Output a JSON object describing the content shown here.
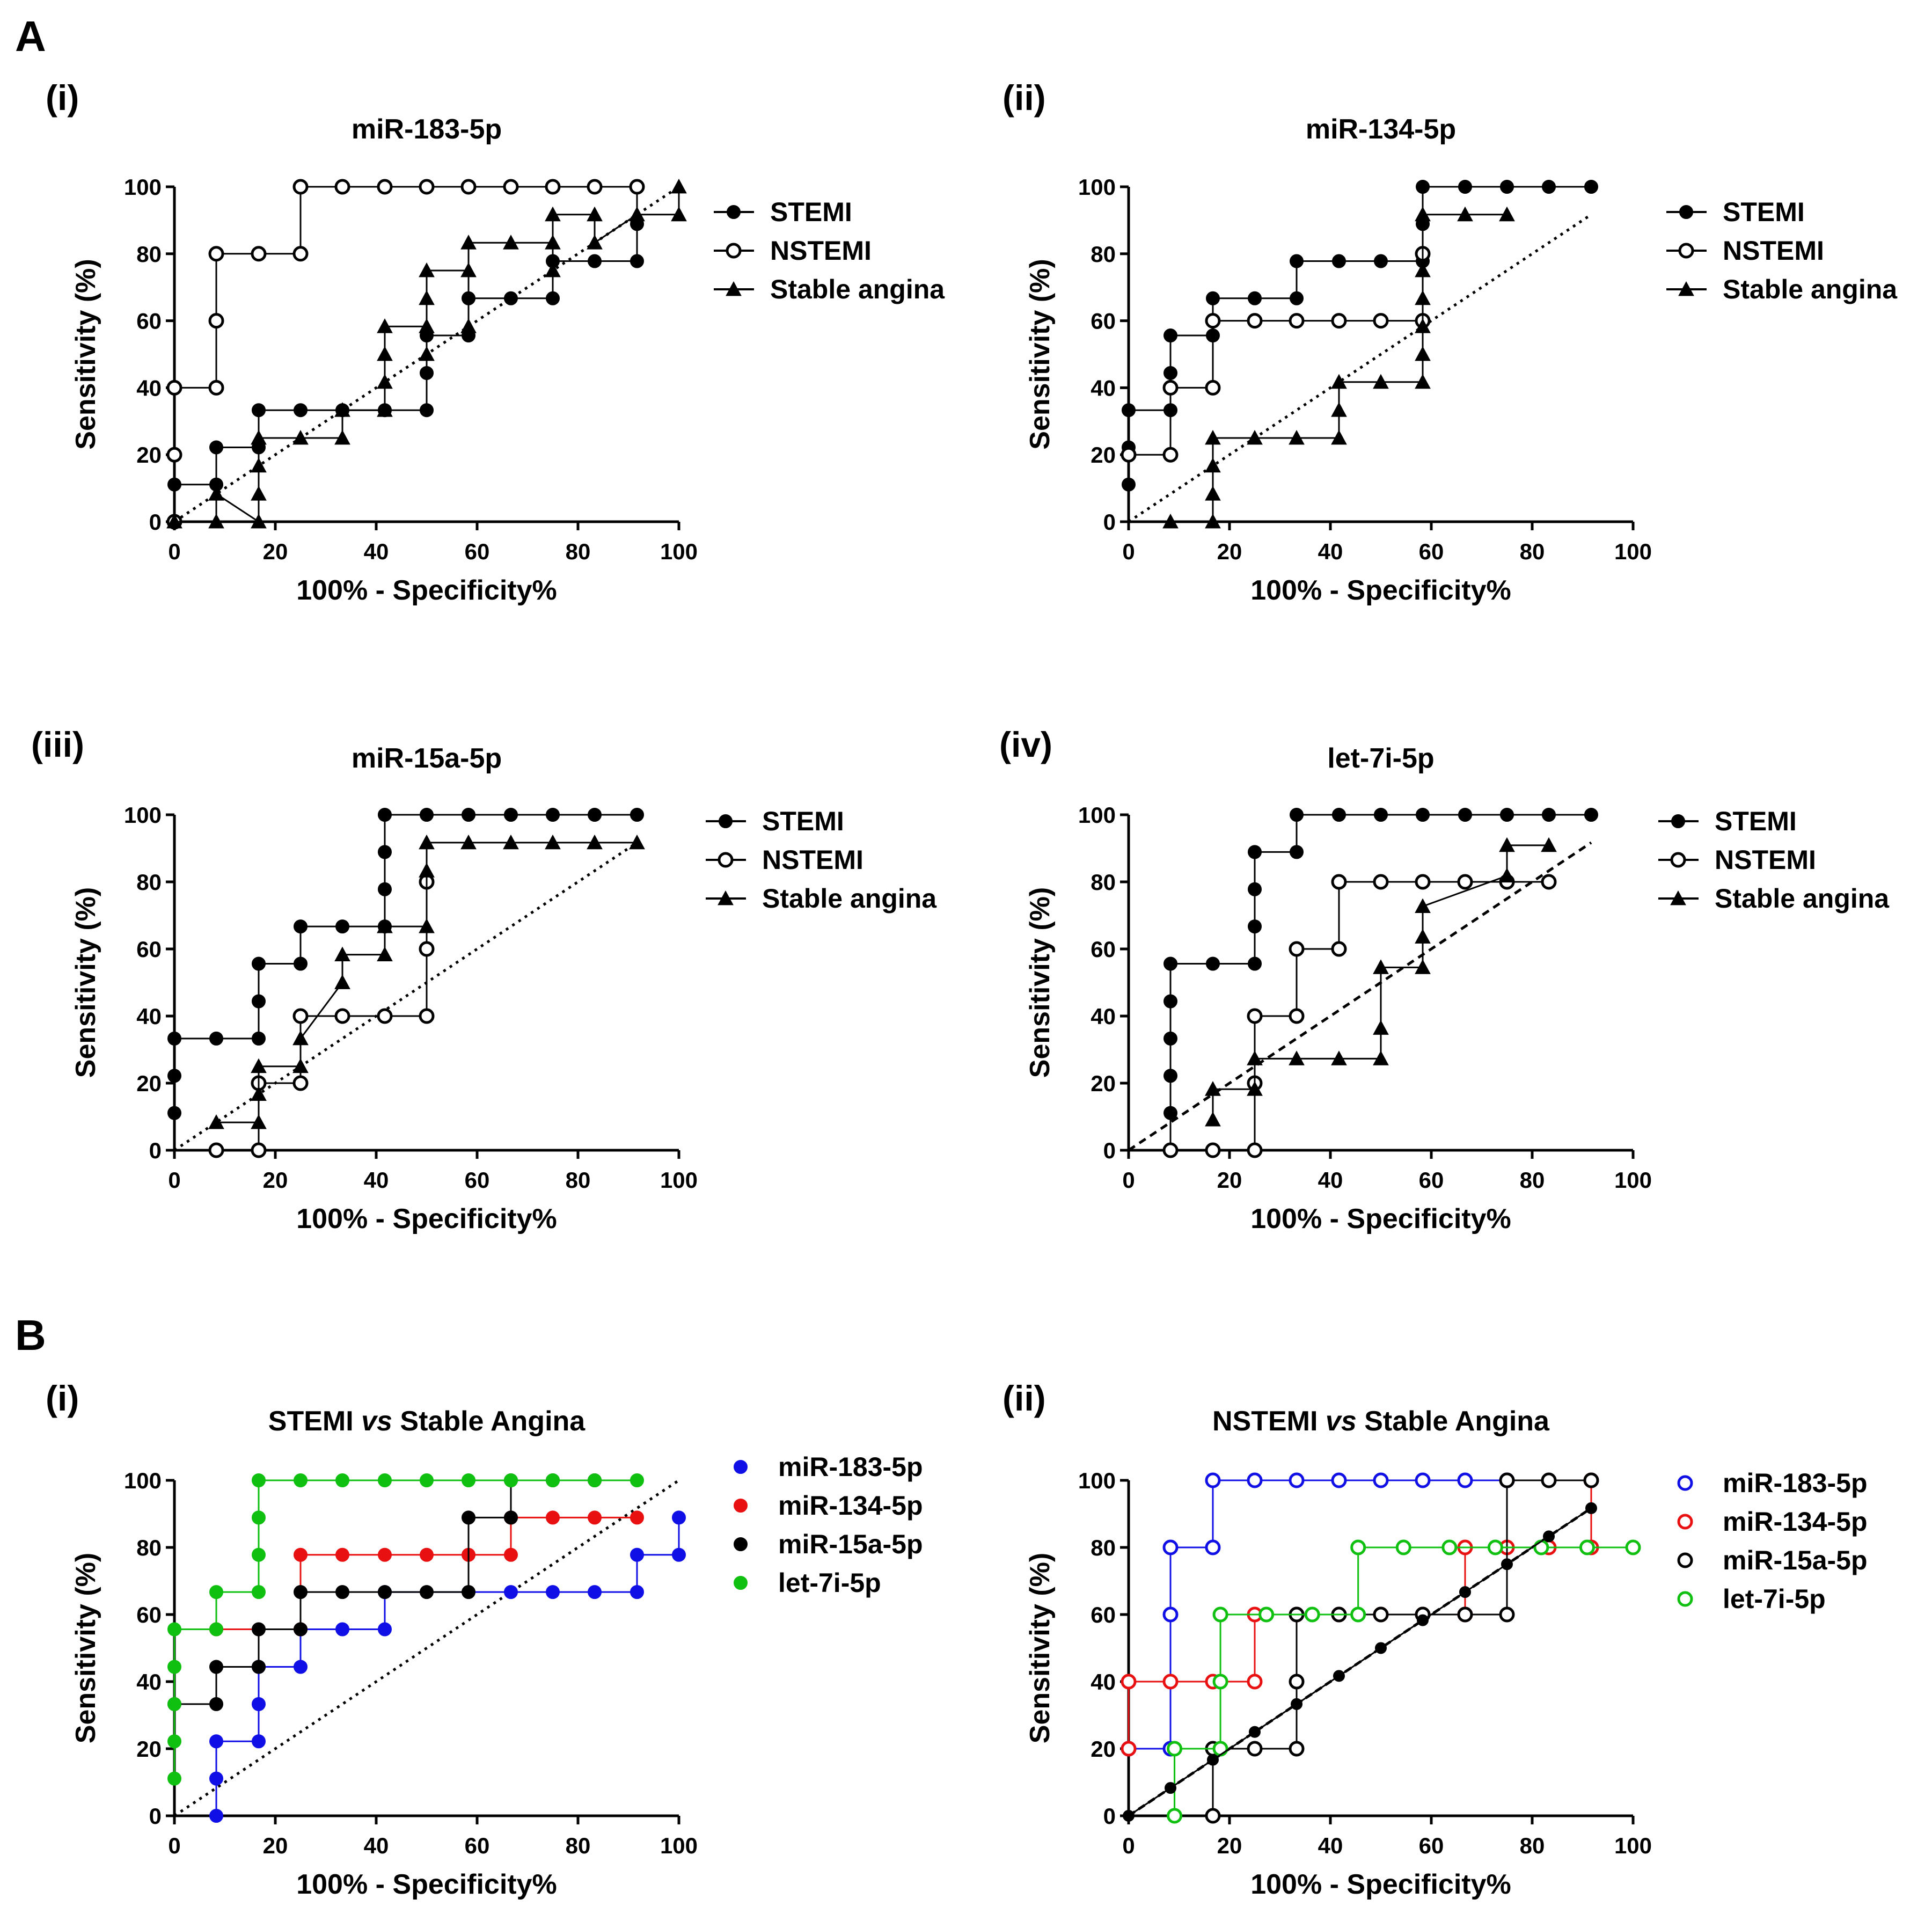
{
  "panel_letters": [
    "A",
    "B"
  ],
  "chart_data": [
    {
      "type": "line",
      "panel": "(i)",
      "title": "miR-183-5p",
      "xlabel": "100% - Specificity%",
      "ylabel": "Sensitivity (%)",
      "xlim": [
        0,
        100
      ],
      "ylim": [
        0,
        100
      ],
      "xticks": [
        0,
        20,
        40,
        60,
        80,
        100
      ],
      "yticks": [
        0,
        20,
        40,
        60,
        80,
        100
      ],
      "diagonal": "dotted",
      "series": [
        {
          "name": "STEMI",
          "marker": "filled-circle",
          "color": "#000000",
          "x": [
            0,
            0,
            8.3,
            8.3,
            16.7,
            16.7,
            25,
            33.3,
            41.7,
            50,
            50,
            50,
            58.3,
            58.3,
            66.7,
            75,
            75,
            83.3,
            91.7,
            91.7,
            91.7
          ],
          "y": [
            0,
            11.1,
            11.1,
            22.2,
            22.2,
            33.3,
            33.3,
            33.3,
            33.3,
            33.3,
            44.4,
            55.6,
            55.6,
            66.7,
            66.7,
            66.7,
            77.8,
            77.8,
            77.8,
            88.9,
            100
          ]
        },
        {
          "name": "NSTEMI",
          "marker": "open-circle",
          "color": "#000000",
          "x": [
            0,
            0,
            0,
            8.3,
            8.3,
            8.3,
            16.7,
            25,
            25,
            33.3,
            41.7,
            50,
            58.3,
            66.7,
            75,
            83.3,
            91.7
          ],
          "y": [
            0,
            20,
            40,
            40,
            60,
            80,
            80,
            80,
            100,
            100,
            100,
            100,
            100,
            100,
            100,
            100,
            100
          ]
        },
        {
          "name": "Stable angina",
          "marker": "filled-triangle",
          "color": "#000000",
          "x": [
            0,
            8.3,
            8.3,
            16.7,
            16.7,
            16.7,
            16.7,
            25,
            33.3,
            33.3,
            41.7,
            41.7,
            41.7,
            41.7,
            50,
            50,
            50,
            50,
            58.3,
            58.3,
            58.3,
            66.7,
            75,
            75,
            75,
            83.3,
            83.3,
            91.7,
            100,
            100
          ],
          "y": [
            0,
            0,
            8.3,
            0,
            8.3,
            16.7,
            25,
            25,
            25,
            33.3,
            33.3,
            41.7,
            50,
            58.3,
            58.3,
            50,
            66.7,
            75,
            75,
            58.3,
            83.3,
            83.3,
            83.3,
            75,
            91.7,
            91.7,
            83.3,
            91.7,
            91.7,
            100
          ]
        }
      ]
    },
    {
      "type": "line",
      "panel": "(ii)",
      "title": "miR-134-5p",
      "xlabel": "100% - Specificity%",
      "ylabel": "Sensitivity (%)",
      "xlim": [
        0,
        100
      ],
      "ylim": [
        0,
        100
      ],
      "xticks": [
        0,
        20,
        40,
        60,
        80,
        100
      ],
      "yticks": [
        0,
        20,
        40,
        60,
        80,
        100
      ],
      "diagonal": "dotted",
      "series": [
        {
          "name": "STEMI",
          "marker": "filled-circle",
          "color": "#000000",
          "x": [
            0,
            0,
            0,
            8.3,
            8.3,
            8.3,
            16.7,
            16.7,
            25,
            33.3,
            33.3,
            41.7,
            50,
            58.3,
            58.3,
            58.3,
            66.7,
            75,
            83.3,
            91.7
          ],
          "y": [
            11.1,
            22.2,
            33.3,
            33.3,
            44.4,
            55.6,
            55.6,
            66.7,
            66.7,
            66.7,
            77.8,
            77.8,
            77.8,
            77.8,
            88.9,
            100,
            100,
            100,
            100,
            100
          ]
        },
        {
          "name": "NSTEMI",
          "marker": "open-circle",
          "color": "#000000",
          "x": [
            0,
            8.3,
            8.3,
            16.7,
            16.7,
            25,
            33.3,
            41.7,
            50,
            58.3,
            58.3
          ],
          "y": [
            20,
            20,
            40,
            40,
            60,
            60,
            60,
            60,
            60,
            60,
            80
          ]
        },
        {
          "name": "Stable angina",
          "marker": "filled-triangle",
          "color": "#000000",
          "x": [
            8.3,
            16.7,
            16.7,
            16.7,
            16.7,
            25,
            33.3,
            41.7,
            41.7,
            41.7,
            50,
            58.3,
            58.3,
            58.3,
            58.3,
            58.3,
            58.3,
            66.7,
            75
          ],
          "y": [
            0,
            0,
            8.3,
            16.7,
            25,
            25,
            25,
            25,
            33.3,
            41.7,
            41.7,
            41.7,
            50,
            58.3,
            66.7,
            75,
            91.7,
            91.7,
            91.7
          ]
        }
      ]
    },
    {
      "type": "line",
      "panel": "(iii)",
      "title": "miR-15a-5p",
      "xlabel": "100% - Specificity%",
      "ylabel": "Sensitivity (%)",
      "xlim": [
        0,
        100
      ],
      "ylim": [
        0,
        100
      ],
      "xticks": [
        0,
        20,
        40,
        60,
        80,
        100
      ],
      "yticks": [
        0,
        20,
        40,
        60,
        80,
        100
      ],
      "diagonal": "dotted",
      "series": [
        {
          "name": "STEMI",
          "marker": "filled-circle",
          "color": "#000000",
          "x": [
            0,
            0,
            0,
            8.3,
            16.7,
            16.7,
            16.7,
            25,
            25,
            33.3,
            41.7,
            41.7,
            41.7,
            41.7,
            50,
            58.3,
            66.7,
            75,
            83.3,
            91.7
          ],
          "y": [
            11.1,
            22.2,
            33.3,
            33.3,
            33.3,
            44.4,
            55.6,
            55.6,
            66.7,
            66.7,
            66.7,
            77.8,
            88.9,
            100,
            100,
            100,
            100,
            100,
            100,
            100
          ]
        },
        {
          "name": "NSTEMI",
          "marker": "open-circle",
          "color": "#000000",
          "x": [
            8.3,
            16.7,
            16.7,
            25,
            25,
            33.3,
            41.7,
            50,
            50,
            50
          ],
          "y": [
            0,
            0,
            20,
            20,
            40,
            40,
            40,
            40,
            60,
            80
          ]
        },
        {
          "name": "Stable angina",
          "marker": "filled-triangle",
          "color": "#000000",
          "x": [
            8.3,
            16.7,
            16.7,
            16.7,
            25,
            25,
            33.3,
            33.3,
            41.7,
            41.7,
            50,
            50,
            50,
            58.3,
            66.7,
            75,
            83.3,
            91.7
          ],
          "y": [
            8.3,
            8.3,
            16.7,
            25,
            25,
            33.3,
            50,
            58.3,
            58.3,
            66.7,
            66.7,
            83.3,
            91.7,
            91.7,
            91.7,
            91.7,
            91.7,
            91.7
          ]
        }
      ]
    },
    {
      "type": "line",
      "panel": "(iv)",
      "title": "let-7i-5p",
      "xlabel": "100% - Specificity%",
      "ylabel": "Sensitivity (%)",
      "xlim": [
        0,
        100
      ],
      "ylim": [
        0,
        100
      ],
      "xticks": [
        0,
        20,
        40,
        60,
        80,
        100
      ],
      "yticks": [
        0,
        20,
        40,
        60,
        80,
        100
      ],
      "diagonal": "dashed",
      "series": [
        {
          "name": "STEMI",
          "marker": "filled-circle",
          "color": "#000000",
          "x": [
            8.3,
            8.3,
            8.3,
            8.3,
            8.3,
            8.3,
            16.7,
            25,
            25,
            25,
            25,
            33.3,
            33.3,
            41.7,
            50,
            58.3,
            66.7,
            75,
            83.3,
            91.7
          ],
          "y": [
            0,
            11.1,
            22.2,
            33.3,
            44.4,
            55.6,
            55.6,
            55.6,
            66.7,
            77.8,
            88.9,
            88.9,
            100,
            100,
            100,
            100,
            100,
            100,
            100,
            100
          ]
        },
        {
          "name": "NSTEMI",
          "marker": "open-circle",
          "color": "#000000",
          "x": [
            8.3,
            16.7,
            25,
            25,
            25,
            33.3,
            33.3,
            41.7,
            41.7,
            50,
            58.3,
            66.7,
            75,
            83.3
          ],
          "y": [
            0,
            0,
            0,
            20,
            40,
            40,
            60,
            60,
            80,
            80,
            80,
            80,
            80,
            80
          ]
        },
        {
          "name": "Stable angina",
          "marker": "filled-triangle",
          "color": "#000000",
          "x": [
            16.7,
            16.7,
            16.7,
            25,
            25,
            33.3,
            41.7,
            50,
            50,
            50,
            58.3,
            58.3,
            58.3,
            75,
            75,
            83.3
          ],
          "y": [
            9.1,
            18.2,
            18.2,
            18.2,
            27.3,
            27.3,
            27.3,
            27.3,
            36.4,
            54.5,
            54.5,
            63.6,
            72.7,
            81.8,
            90.9,
            90.9
          ]
        }
      ]
    },
    {
      "type": "line",
      "panel": "(i)",
      "title_parts": [
        "STEMI ",
        "vs",
        " Stable Angina"
      ],
      "xlabel": "100% - Specificity%",
      "ylabel": "Sensitivity (%)",
      "xlim": [
        0,
        100
      ],
      "ylim": [
        0,
        100
      ],
      "xticks": [
        0,
        20,
        40,
        60,
        80,
        100
      ],
      "yticks": [
        0,
        20,
        40,
        60,
        80,
        100
      ],
      "diagonal": "dotted",
      "series": [
        {
          "name": "miR-183-5p",
          "marker": "filled-circle",
          "color": "#1010e6",
          "x": [
            8.3,
            8.3,
            8.3,
            16.7,
            16.7,
            16.7,
            25,
            25,
            33.3,
            41.7,
            41.7,
            66.7,
            75,
            83.3,
            91.7,
            91.7,
            100,
            100
          ],
          "y": [
            0,
            11.1,
            22.2,
            22.2,
            33.3,
            44.4,
            44.4,
            55.6,
            55.6,
            55.6,
            66.7,
            66.7,
            66.7,
            66.7,
            66.7,
            77.8,
            77.8,
            88.9
          ]
        },
        {
          "name": "miR-134-5p",
          "marker": "filled-circle",
          "color": "#e81010",
          "x": [
            8.3,
            25,
            25,
            33.3,
            41.7,
            50,
            58.3,
            66.7,
            66.7,
            75,
            83.3,
            91.7
          ],
          "y": [
            55.6,
            55.6,
            77.8,
            77.8,
            77.8,
            77.8,
            77.8,
            77.8,
            88.9,
            88.9,
            88.9,
            88.9
          ]
        },
        {
          "name": "miR-15a-5p",
          "marker": "filled-circle",
          "color": "#000000",
          "x": [
            0,
            8.3,
            8.3,
            16.7,
            16.7,
            25,
            25,
            33.3,
            41.7,
            50,
            58.3,
            58.3,
            66.7,
            66.7,
            75,
            83.3
          ],
          "y": [
            33.3,
            33.3,
            44.4,
            44.4,
            55.6,
            55.6,
            66.7,
            66.7,
            66.7,
            66.7,
            66.7,
            88.9,
            88.9,
            100,
            100,
            100
          ]
        },
        {
          "name": "let-7i-5p",
          "marker": "filled-circle",
          "color": "#10c010",
          "x": [
            0,
            0,
            0,
            0,
            0,
            8.3,
            8.3,
            16.7,
            16.7,
            16.7,
            16.7,
            25,
            33.3,
            41.7,
            50,
            58.3,
            66.7,
            75,
            83.3,
            91.7
          ],
          "y": [
            11.1,
            22.2,
            33.3,
            44.4,
            55.6,
            55.6,
            66.7,
            66.7,
            77.8,
            88.9,
            100,
            100,
            100,
            100,
            100,
            100,
            100,
            100,
            100,
            100
          ]
        }
      ]
    },
    {
      "type": "line",
      "panel": "(ii)",
      "title_parts": [
        "NSTEMI ",
        "vs",
        " Stable Angina"
      ],
      "xlabel": "100% - Specificity%",
      "ylabel": "Sensitivity (%)",
      "xlim": [
        0,
        100
      ],
      "ylim": [
        0,
        100
      ],
      "xticks": [
        0,
        20,
        40,
        60,
        80,
        100
      ],
      "yticks": [
        0,
        20,
        40,
        60,
        80,
        100
      ],
      "diagonal": "dashed-dotted",
      "series": [
        {
          "name": "miR-183-5p",
          "marker": "open-circle",
          "color": "#1010e6",
          "x": [
            0,
            8.3,
            8.3,
            8.3,
            16.7,
            16.7,
            25,
            33.3,
            41.7,
            50,
            58.3,
            66.7,
            75
          ],
          "y": [
            20,
            20,
            60,
            80,
            80,
            100,
            100,
            100,
            100,
            100,
            100,
            100,
            100
          ]
        },
        {
          "name": "miR-134-5p",
          "marker": "open-circle",
          "color": "#e81010",
          "x": [
            0,
            0,
            8.3,
            16.7,
            25,
            25,
            33.3,
            41.7,
            50,
            58.3,
            66.7,
            66.7,
            75,
            83.3,
            91.7,
            91.7
          ],
          "y": [
            20,
            40,
            40,
            40,
            40,
            60,
            60,
            60,
            60,
            60,
            60,
            80,
            80,
            80,
            80,
            100
          ]
        },
        {
          "name": "miR-15a-5p",
          "marker": "open-circle",
          "color": "#000000",
          "x": [
            16.7,
            16.7,
            25,
            33.3,
            33.3,
            33.3,
            41.7,
            50,
            58.3,
            66.7,
            75,
            75,
            83.3,
            91.7
          ],
          "y": [
            0,
            20,
            20,
            20,
            40,
            60,
            60,
            60,
            60,
            60,
            60,
            100,
            100,
            100
          ]
        },
        {
          "name": "let-7i-5p",
          "marker": "open-circle",
          "color": "#10c010",
          "x": [
            9.1,
            9.1,
            18.2,
            18.2,
            18.2,
            27.3,
            36.4,
            45.5,
            45.5,
            54.5,
            63.6,
            72.7,
            81.8,
            90.9,
            100
          ],
          "y": [
            0,
            20,
            20,
            40,
            60,
            60,
            60,
            60,
            80,
            80,
            80,
            80,
            80,
            80,
            80
          ]
        },
        {
          "name": "reference",
          "marker": "filled-circle-small",
          "color": "#000000",
          "legend": false,
          "x": [
            0,
            8.3,
            16.7,
            25,
            33.3,
            41.7,
            50,
            58.3,
            66.7,
            75,
            83.3,
            91.7
          ],
          "y": [
            0,
            8.3,
            16.7,
            25,
            33.3,
            41.7,
            50,
            58.3,
            66.7,
            75,
            83.3,
            91.7
          ]
        }
      ]
    }
  ]
}
